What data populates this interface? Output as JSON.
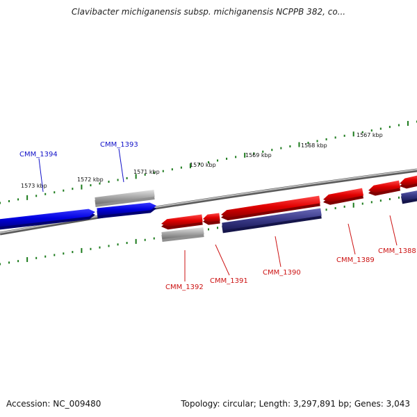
{
  "title": "Clavibacter michiganensis subsp. michiganensis NCPPB 382, co...",
  "footer": {
    "accession": "Accession: NC_009480",
    "topology": "Topology: circular; Length: 3,297,891 bp; Genes: 3,043"
  },
  "scale_labels": [
    "1573 kbp",
    "1572 kbp",
    "1571 kbp",
    "1570 kbp",
    "1569 kbp",
    "1568 kbp",
    "1567 kbp"
  ],
  "genes": [
    {
      "label": "CMM_1394",
      "color": "#1010c8"
    },
    {
      "label": "CMM_1393",
      "color": "#1010c8"
    },
    {
      "label": "CMM_1392",
      "color": "#cc1111"
    },
    {
      "label": "CMM_1391",
      "color": "#cc1111"
    },
    {
      "label": "CMM_1390",
      "color": "#cc1111"
    },
    {
      "label": "CMM_1389",
      "color": "#cc1111"
    },
    {
      "label": "CMM_1388",
      "color": "#cc1111"
    }
  ],
  "colors": {
    "forward_gene": "#0000e0",
    "reverse_gene": "#e00000",
    "rna_gene": "#a8a8a8",
    "other_gene": "#3a3a88",
    "backbone": "#808080",
    "ticks": "#1a7a1a"
  }
}
